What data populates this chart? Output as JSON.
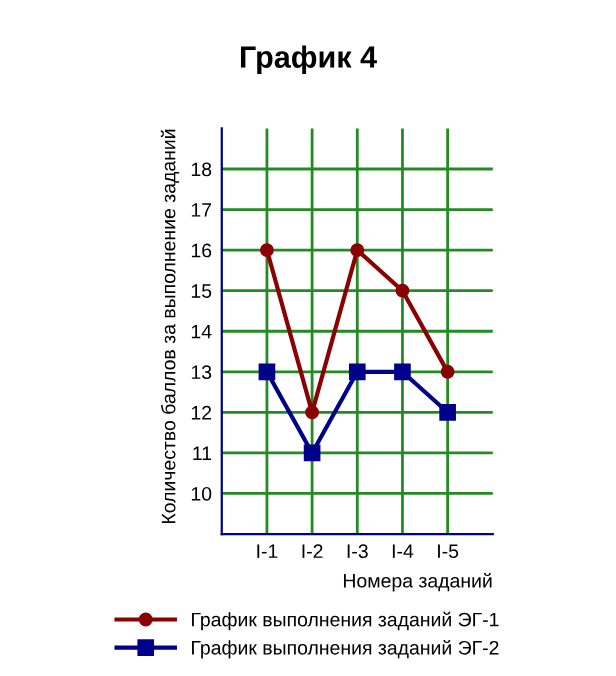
{
  "chart_data": {
    "type": "line",
    "title": "График 4",
    "xlabel": "Номера заданий",
    "ylabel": "Количество баллов за выполнение заданий",
    "categories": [
      "I-1",
      "I-2",
      "I-3",
      "I-4",
      "I-5"
    ],
    "series": [
      {
        "name": "График выполнения заданий ЭГ-1",
        "color": "#8b0000",
        "marker": "circle",
        "values": [
          16,
          12,
          16,
          15,
          13
        ]
      },
      {
        "name": "График выполнения заданий ЭГ-2",
        "color": "#00008b",
        "marker": "square",
        "values": [
          13,
          11,
          13,
          13,
          12
        ]
      }
    ],
    "ylim": [
      9,
      19
    ],
    "yticks": [
      10,
      11,
      12,
      13,
      14,
      15,
      16,
      17,
      18
    ],
    "grid": true,
    "legend": "bottom",
    "line_style": "solid"
  }
}
